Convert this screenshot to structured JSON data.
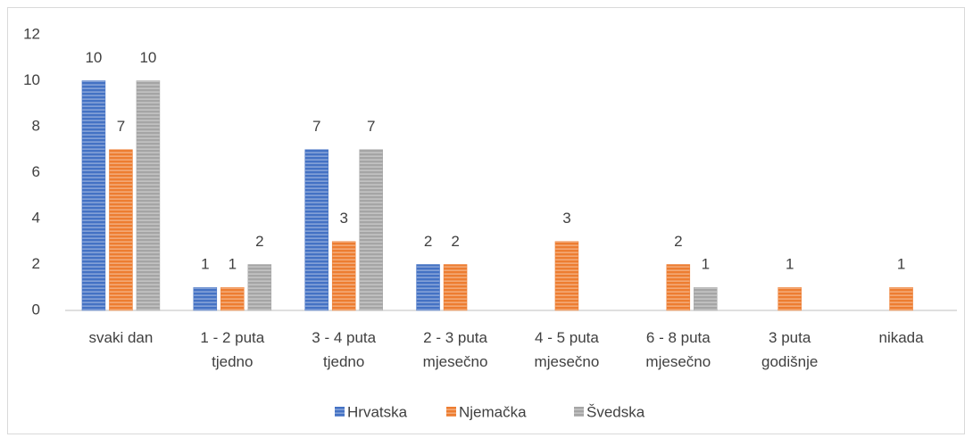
{
  "chart_data": {
    "type": "bar",
    "categories": [
      [
        "svaki dan"
      ],
      [
        "1 - 2 puta",
        "tjedno"
      ],
      [
        "3 - 4  puta",
        "tjedno"
      ],
      [
        "2 - 3 puta",
        "mjesečno"
      ],
      [
        "4 - 5 puta",
        "mjesečno"
      ],
      [
        "6 - 8 puta",
        "mjesečno"
      ],
      [
        "3 puta",
        "godišnje"
      ],
      [
        "nikada"
      ]
    ],
    "series": [
      {
        "name": "Hrvatska",
        "color": "#4472c4",
        "values": [
          10,
          1,
          7,
          2,
          null,
          null,
          null,
          null
        ]
      },
      {
        "name": "Njemačka",
        "color": "#ed7d31",
        "values": [
          7,
          1,
          3,
          2,
          3,
          2,
          1,
          1
        ]
      },
      {
        "name": "Švedska",
        "color": "#a5a5a5",
        "values": [
          10,
          2,
          7,
          null,
          null,
          1,
          null,
          null
        ]
      }
    ],
    "ylim": [
      0,
      12
    ],
    "yticks": [
      0,
      2,
      4,
      6,
      8,
      10,
      12
    ],
    "grid": false,
    "legend": "bottom"
  }
}
